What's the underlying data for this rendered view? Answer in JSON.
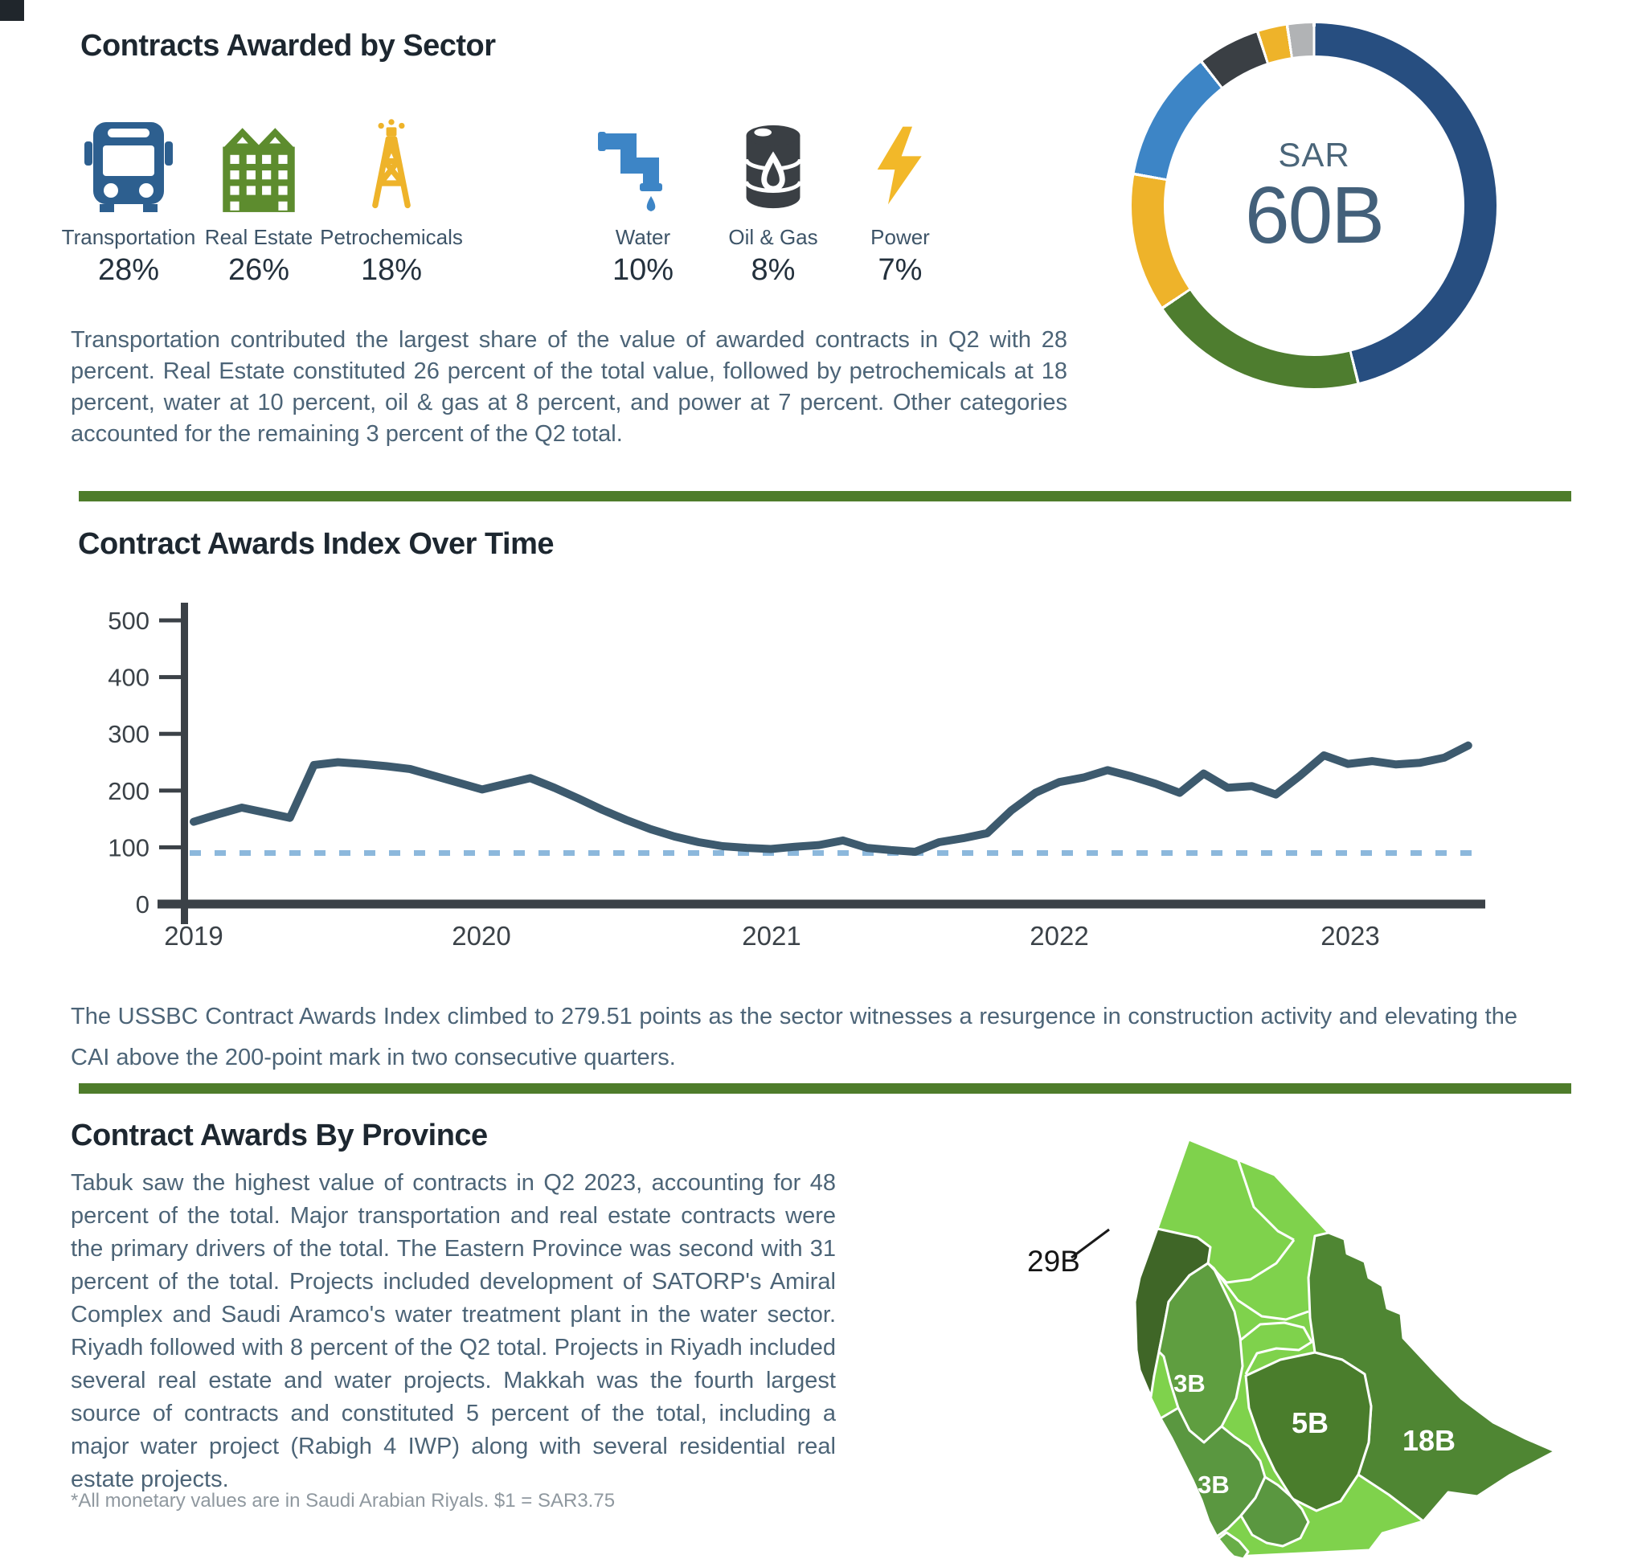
{
  "sector_section": {
    "title": "Contracts Awarded by Sector",
    "sectors": [
      {
        "name": "Transportation",
        "percent": "28%",
        "icon": "bus-icon",
        "color": "#2d5f8f"
      },
      {
        "name": "Real Estate",
        "percent": "26%",
        "icon": "buildings-icon",
        "color": "#5d8c2e"
      },
      {
        "name": "Petrochemicals",
        "percent": "18%",
        "icon": "oil-derrick-icon",
        "color": "#eeb32a"
      },
      {
        "name": "Water",
        "percent": "10%",
        "icon": "water-pipe-icon",
        "color": "#3d85c6"
      },
      {
        "name": "Oil & Gas",
        "percent": "8%",
        "icon": "oil-barrel-icon",
        "color": "#3a3f44"
      },
      {
        "name": "Power",
        "percent": "7%",
        "icon": "lightning-icon",
        "color": "#f2b829"
      }
    ],
    "summary": "Transportation contributed the largest share of the value of awarded contracts in Q2 with 28 percent. Real Estate constituted 26 percent of the total value, followed by petrochemicals at 18 percent, water at 10 percent, oil & gas at 8 percent, and power at 7 percent. Other categories accounted for the remaining 3 percent of the Q2 total.",
    "donut_center_top": "SAR",
    "donut_center_value": "60B"
  },
  "cai_section": {
    "title": "Contract Awards Index Over Time",
    "summary": "The USSBC Contract Awards Index climbed to 279.51 points as the sector witnesses a resurgence in construction activity and elevating the CAI above the 200-point mark in two consecutive quarters."
  },
  "province_section": {
    "title": "Contract Awards By Province",
    "summary": "Tabuk saw the highest value of contracts in Q2 2023, accounting for 48 percent of the total. Major transportation and real estate contracts were the primary drivers of the total. The Eastern Province was second with 31 percent of the total. Projects included development of SATORP's Amiral Complex and Saudi Aramco's water treatment plant in the water sector. Riyadh followed with 8 percent of the Q2 total. Projects in Riyadh included several real estate and water projects. Makkah was the fourth largest source of contracts and constituted 5 percent of the total, including a major water project (Rabigh 4 IWP) along with several residential real estate projects.",
    "footnote": "*All monetary values are in Saudi Arabian Riyals.  $1 = SAR3.75",
    "map": {
      "country_name": "Saudi Arabia",
      "region_colors": {
        "base": "#7fd24c",
        "tabuk": "#3f6627",
        "madinah": "#5f9e40",
        "makkah": "#5a9740",
        "riyadh": "#4a7d2c",
        "eastern": "#4f8633",
        "asir": "#5a9740",
        "jizan": "#68ae48"
      },
      "labels": [
        {
          "region": "tabuk",
          "province": "Tabuk",
          "value": "29B"
        },
        {
          "region": "madinah",
          "province": "Madinah",
          "value": "3B"
        },
        {
          "region": "makkah",
          "province": "Makkah",
          "value": "3B"
        },
        {
          "region": "riyadh",
          "province": "Riyadh",
          "value": "5B"
        },
        {
          "region": "eastern",
          "province": "Eastern Province",
          "value": "18B"
        }
      ]
    }
  },
  "chart_data": [
    {
      "type": "pie",
      "subtype": "donut",
      "title": "Contracts Awarded by Sector",
      "center_label": "SAR 60B",
      "units": "percent of Q2 total awarded contract value",
      "slices": [
        {
          "label": "Transportation",
          "value": 28,
          "color": "#274e80",
          "display_sweep_deg": 166
        },
        {
          "label": "Real Estate",
          "value": 26,
          "color": "#4e7d2f",
          "display_sweep_deg": 70
        },
        {
          "label": "Petrochemicals",
          "value": 18,
          "color": "#eeb32a",
          "display_sweep_deg": 44
        },
        {
          "label": "Water",
          "value": 10,
          "color": "#3d85c6",
          "display_sweep_deg": 42
        },
        {
          "label": "Oil & Gas",
          "value": 8,
          "color": "#3a3f44",
          "display_sweep_deg": 20
        },
        {
          "label": "Power",
          "value": 7,
          "color": "#eeb32a",
          "display_sweep_deg": 9.5
        },
        {
          "label": "Other",
          "value": 3,
          "color": "#b1b3b5",
          "display_sweep_deg": 8.5
        }
      ]
    },
    {
      "type": "line",
      "title": "Contract Awards Index Over Time",
      "xlabel": "",
      "ylabel": "",
      "x_tick_labels": [
        "2019",
        "2020",
        "2021",
        "2022",
        "2023"
      ],
      "y_ticks": [
        0,
        100,
        200,
        300,
        400,
        500
      ],
      "ylim": [
        0,
        560
      ],
      "grid": false,
      "reference_line": {
        "value": 90,
        "style": "dotted",
        "color": "#8cb8dc"
      },
      "series": [
        {
          "name": "USSBC Contract Awards Index",
          "color": "#3d5a6e",
          "start": "2019-01",
          "frequency": "monthly",
          "last_value": 279.51,
          "values": [
            145,
            158,
            170,
            161,
            152,
            245,
            250,
            247,
            243,
            238,
            226,
            214,
            202,
            212,
            222,
            205,
            186,
            166,
            148,
            132,
            119,
            109,
            102,
            99,
            97,
            101,
            104,
            112,
            99,
            95,
            92,
            109,
            116,
            125,
            165,
            196,
            215,
            223,
            236,
            225,
            212,
            196,
            230,
            205,
            208,
            193,
            226,
            262,
            247,
            252,
            246,
            249,
            258,
            279.51
          ]
        }
      ]
    }
  ]
}
